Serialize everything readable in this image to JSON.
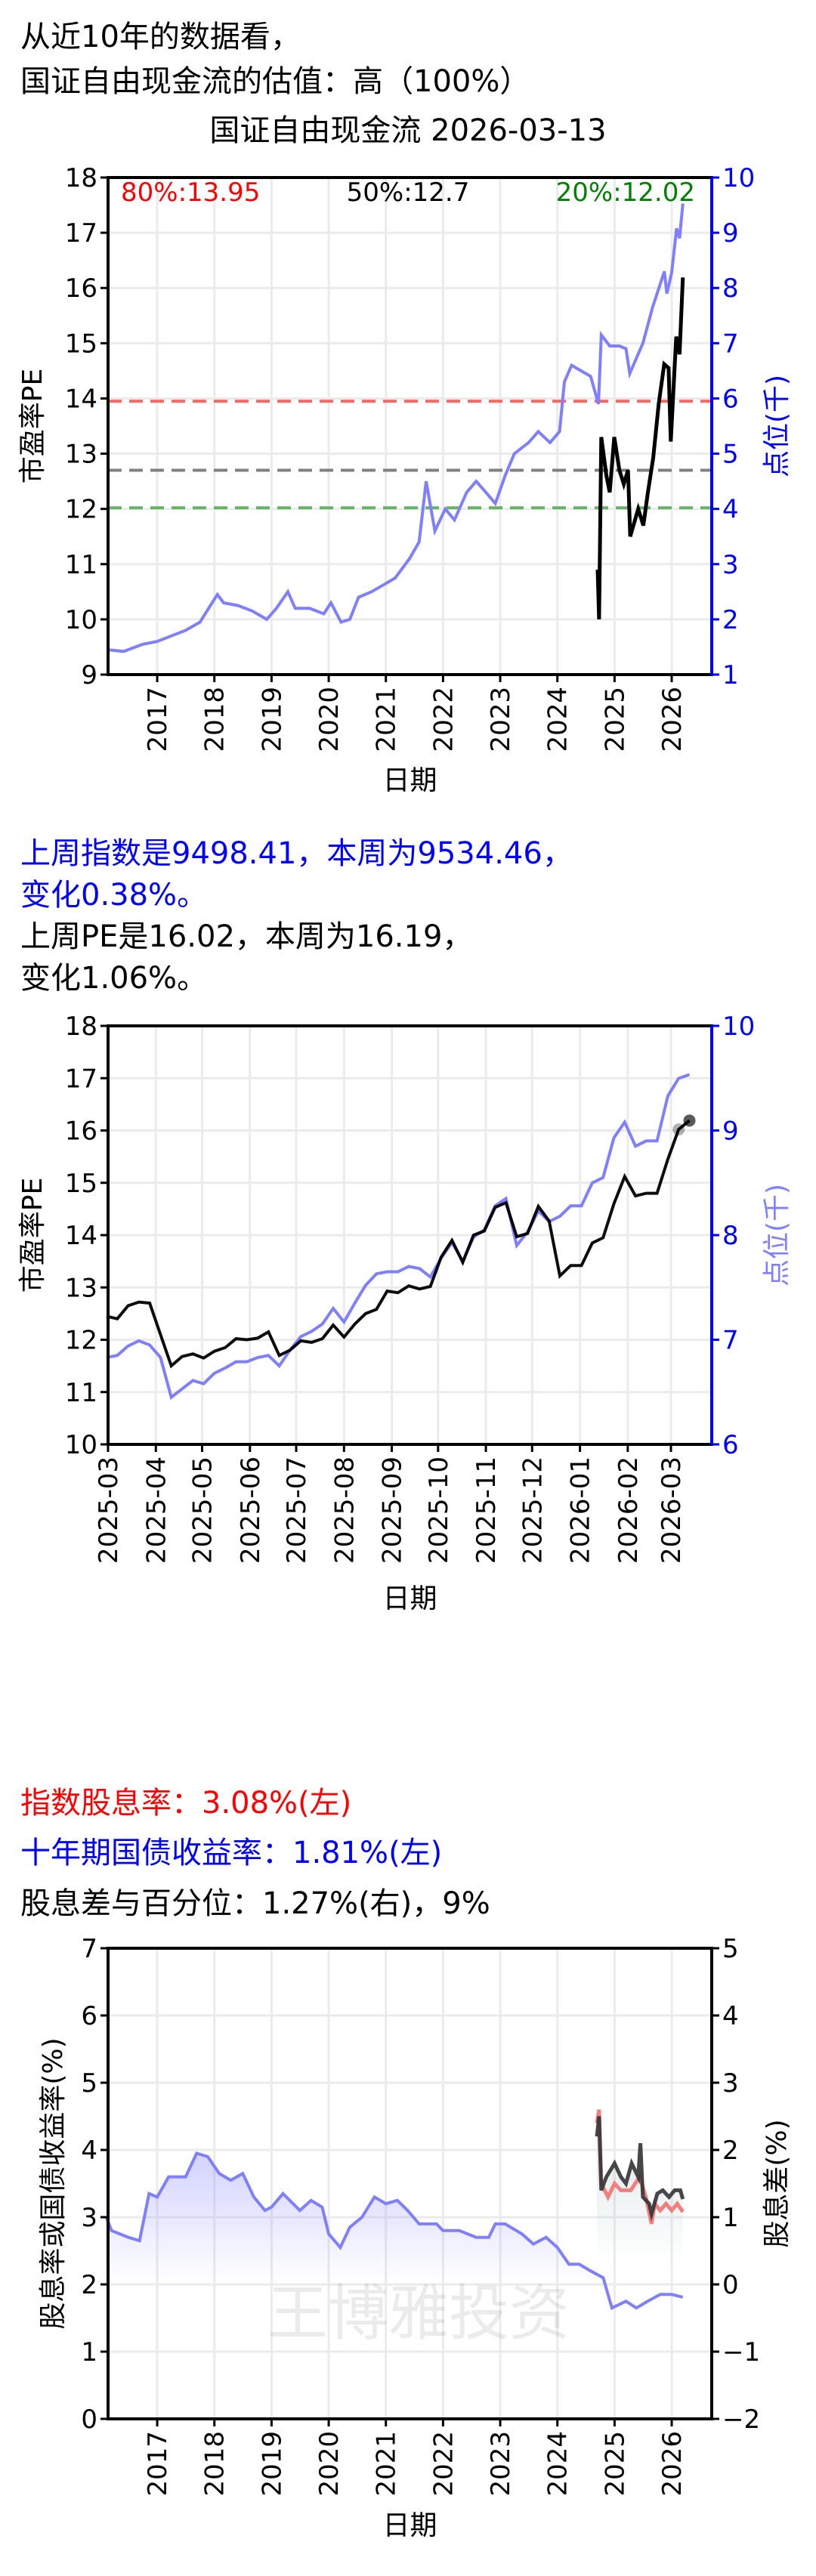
{
  "header": {
    "line1": "从近10年的数据看，",
    "line2": "国证自由现金流的估值：高（100%）"
  },
  "colors": {
    "pe": "#000000",
    "index": "#7f7fff",
    "p80": "#ff6666",
    "p50": "#808080",
    "p20": "#66b266",
    "right_axis": "#0000ff",
    "dividend": "#f08080",
    "bond": "#7f7fff",
    "spread": "#333333"
  },
  "chart_data": [
    {
      "type": "line",
      "title": "国证自由现金流 2026-03-13",
      "xlabel": "日期",
      "ylabel": "市盈率PE",
      "ylabel_right": "点位(千)",
      "ylim": [
        9,
        18
      ],
      "ylim_right": [
        1,
        10
      ],
      "yticks": [
        "9",
        "10",
        "11",
        "12",
        "13",
        "14",
        "15",
        "16",
        "17",
        "18"
      ],
      "yticks_right": [
        "1",
        "2",
        "3",
        "4",
        "5",
        "6",
        "7",
        "8",
        "9",
        "10"
      ],
      "xticks": [
        "2017",
        "2018",
        "2019",
        "2020",
        "2021",
        "2022",
        "2023",
        "2024",
        "2025",
        "2026"
      ],
      "grid": true,
      "annotations": {
        "p80": "80%:13.95",
        "p50": "50%:12.7",
        "p20": "20%:12.02"
      },
      "hlines": {
        "p80": 13.95,
        "p50": 12.7,
        "p20": 12.02
      },
      "series": [
        {
          "axis": "right",
          "points": [
            [
              "2016-02-20",
              1.45
            ],
            [
              "2016-06-01",
              1.42
            ],
            [
              "2016-10-01",
              1.55
            ],
            [
              "2017-01-01",
              1.6
            ],
            [
              "2017-04-01",
              1.7
            ],
            [
              "2017-07-01",
              1.8
            ],
            [
              "2017-10-01",
              1.95
            ],
            [
              "2018-01-20",
              2.45
            ],
            [
              "2018-03-01",
              2.3
            ],
            [
              "2018-06-01",
              2.25
            ],
            [
              "2018-09-01",
              2.15
            ],
            [
              "2018-12-01",
              2.0
            ],
            [
              "2019-02-01",
              2.2
            ],
            [
              "2019-04-15",
              2.5
            ],
            [
              "2019-06-01",
              2.2
            ],
            [
              "2019-09-01",
              2.2
            ],
            [
              "2019-12-01",
              2.1
            ],
            [
              "2020-01-15",
              2.3
            ],
            [
              "2020-03-20",
              1.95
            ],
            [
              "2020-05-15",
              2.0
            ],
            [
              "2020-07-10",
              2.4
            ],
            [
              "2020-10-01",
              2.5
            ],
            [
              "2021-01-01",
              2.65
            ],
            [
              "2021-03-01",
              2.75
            ],
            [
              "2021-06-01",
              3.1
            ],
            [
              "2021-08-01",
              3.4
            ],
            [
              "2021-09-15",
              4.5
            ],
            [
              "2021-11-10",
              3.6
            ],
            [
              "2022-01-15",
              4.0
            ],
            [
              "2022-03-15",
              3.8
            ],
            [
              "2022-06-01",
              4.3
            ],
            [
              "2022-08-01",
              4.5
            ],
            [
              "2022-10-01",
              4.3
            ],
            [
              "2022-12-01",
              4.1
            ],
            [
              "2023-02-01",
              4.6
            ],
            [
              "2023-04-01",
              5.0
            ],
            [
              "2023-07-01",
              5.2
            ],
            [
              "2023-09-01",
              5.4
            ],
            [
              "2023-11-15",
              5.2
            ],
            [
              "2024-01-15",
              5.4
            ],
            [
              "2024-02-15",
              6.3
            ],
            [
              "2024-04-01",
              6.6
            ],
            [
              "2024-06-01",
              6.5
            ],
            [
              "2024-08-01",
              6.4
            ],
            [
              "2024-09-20",
              5.9
            ],
            [
              "2024-10-08",
              7.15
            ],
            [
              "2024-12-01",
              6.95
            ],
            [
              "2025-02-01",
              6.95
            ],
            [
              "2025-03-15",
              6.9
            ],
            [
              "2025-04-08",
              6.45
            ],
            [
              "2025-07-01",
              7.0
            ],
            [
              "2025-09-01",
              7.65
            ],
            [
              "2025-11-15",
              8.3
            ],
            [
              "2025-12-01",
              7.9
            ],
            [
              "2026-01-01",
              8.28
            ],
            [
              "2026-02-01",
              9.08
            ],
            [
              "2026-02-20",
              8.9
            ],
            [
              "2026-03-13",
              9.53
            ]
          ]
        },
        {
          "axis": "left",
          "points": [
            [
              "2024-09-15",
              10.9
            ],
            [
              "2024-09-24",
              10.0
            ],
            [
              "2024-10-08",
              13.3
            ],
            [
              "2024-11-10",
              12.6
            ],
            [
              "2024-12-01",
              12.3
            ],
            [
              "2024-12-30",
              13.3
            ],
            [
              "2025-02-01",
              12.7
            ],
            [
              "2025-03-01",
              12.45
            ],
            [
              "2025-03-28",
              12.7
            ],
            [
              "2025-04-11",
              11.5
            ],
            [
              "2025-06-01",
              12.0
            ],
            [
              "2025-07-04",
              11.7
            ],
            [
              "2025-08-01",
              12.28
            ],
            [
              "2025-09-05",
              12.93
            ],
            [
              "2025-10-10",
              13.9
            ],
            [
              "2025-11-14",
              14.62
            ],
            [
              "2025-12-12",
              14.55
            ],
            [
              "2025-12-26",
              13.22
            ],
            [
              "2026-01-30",
              15.12
            ],
            [
              "2026-02-20",
              14.8
            ],
            [
              "2026-03-13",
              16.19
            ]
          ]
        }
      ]
    },
    {
      "type": "line",
      "text_index_line1": "上周指数是9498.41，本周为9534.46，",
      "text_index_line2": "变化0.38%。",
      "text_pe_line1": "上周PE是16.02，本周为16.19，",
      "text_pe_line2": "变化1.06%。",
      "xlabel": "日期",
      "ylabel": "市盈率PE",
      "ylabel_right": "点位(千)",
      "ylim": [
        10,
        18
      ],
      "ylim_right": [
        6,
        10
      ],
      "yticks": [
        "10",
        "11",
        "12",
        "13",
        "14",
        "15",
        "16",
        "17",
        "18"
      ],
      "yticks_right": [
        "6",
        "7",
        "8",
        "9",
        "10"
      ],
      "xticks": [
        "2025-03",
        "2025-04",
        "2025-05",
        "2025-06",
        "2025-07",
        "2025-08",
        "2025-09",
        "2025-10",
        "2025-11",
        "2025-12",
        "2026-01",
        "2026-02",
        "2026-03"
      ],
      "grid": true,
      "dates": [
        "2025-02-28",
        "2025-03-07",
        "2025-03-14",
        "2025-03-21",
        "2025-03-28",
        "2025-04-04",
        "2025-04-11",
        "2025-04-18",
        "2025-04-25",
        "2025-05-02",
        "2025-05-09",
        "2025-05-16",
        "2025-05-23",
        "2025-05-30",
        "2025-06-06",
        "2025-06-13",
        "2025-06-20",
        "2025-06-27",
        "2025-07-04",
        "2025-07-11",
        "2025-07-18",
        "2025-07-25",
        "2025-08-01",
        "2025-08-08",
        "2025-08-15",
        "2025-08-22",
        "2025-08-29",
        "2025-09-05",
        "2025-09-12",
        "2025-09-19",
        "2025-09-26",
        "2025-10-03",
        "2025-10-10",
        "2025-10-17",
        "2025-10-24",
        "2025-10-31",
        "2025-11-07",
        "2025-11-14",
        "2025-11-21",
        "2025-11-28",
        "2025-12-05",
        "2025-12-12",
        "2025-12-19",
        "2025-12-26",
        "2026-01-02",
        "2026-01-09",
        "2026-01-16",
        "2026-01-23",
        "2026-01-30",
        "2026-02-06",
        "2026-02-13",
        "2026-02-20",
        "2026-02-27",
        "2026-03-06",
        "2026-03-13"
      ],
      "pe": [
        12.45,
        12.4,
        12.65,
        12.72,
        12.7,
        12.1,
        11.5,
        11.68,
        11.73,
        11.65,
        11.78,
        11.85,
        12.02,
        12.0,
        12.03,
        12.15,
        11.7,
        11.8,
        11.98,
        11.95,
        12.02,
        12.28,
        12.05,
        12.3,
        12.5,
        12.58,
        12.93,
        12.9,
        13.03,
        12.97,
        13.02,
        13.58,
        13.9,
        13.48,
        14.0,
        14.08,
        14.53,
        14.62,
        13.97,
        14.03,
        14.55,
        14.27,
        13.22,
        13.42,
        13.42,
        13.85,
        13.95,
        14.6,
        15.12,
        14.75,
        14.8,
        14.8,
        15.45,
        16.02,
        16.19
      ],
      "index": [
        6.83,
        6.85,
        6.94,
        6.99,
        6.95,
        6.83,
        6.45,
        6.53,
        6.61,
        6.58,
        6.68,
        6.73,
        6.79,
        6.79,
        6.83,
        6.85,
        6.75,
        6.9,
        7.03,
        7.08,
        7.15,
        7.3,
        7.17,
        7.35,
        7.52,
        7.63,
        7.65,
        7.65,
        7.7,
        7.68,
        7.6,
        7.78,
        7.93,
        7.75,
        7.98,
        8.05,
        8.28,
        8.35,
        7.9,
        8.03,
        8.23,
        8.13,
        8.18,
        8.28,
        8.28,
        8.5,
        8.55,
        8.93,
        9.08,
        8.85,
        8.9,
        8.9,
        9.33,
        9.498,
        9.534
      ]
    },
    {
      "type": "line",
      "text_dividend": "指数股息率：3.08%(左)",
      "text_bond": "十年期国债收益率：1.81%(左)",
      "text_spread": "股息差与百分位：1.27%(右)，9%",
      "watermark": "王博雅投资",
      "xlabel": "日期",
      "ylabel": "股息率或国债收益率(%)",
      "ylabel_right": "股息差(%)",
      "ylim": [
        0,
        7
      ],
      "ylim_right": [
        -2,
        5
      ],
      "yticks": [
        "0",
        "1",
        "2",
        "3",
        "4",
        "5",
        "6",
        "7"
      ],
      "yticks_right": [
        "−2",
        "−1",
        "0",
        "1",
        "2",
        "3",
        "4",
        "5"
      ],
      "xticks": [
        "2017",
        "2018",
        "2019",
        "2020",
        "2021",
        "2022",
        "2023",
        "2024",
        "2025",
        "2026"
      ],
      "grid": true,
      "bond": [
        [
          "2016-02-10",
          3.0
        ],
        [
          "2016-03-15",
          2.8
        ],
        [
          "2016-07-01",
          2.7
        ],
        [
          "2016-09-10",
          2.65
        ],
        [
          "2016-11-10",
          3.35
        ],
        [
          "2017-01-01",
          3.3
        ],
        [
          "2017-03-15",
          3.6
        ],
        [
          "2017-07-01",
          3.6
        ],
        [
          "2017-09-10",
          3.95
        ],
        [
          "2017-11-20",
          3.9
        ],
        [
          "2018-02-01",
          3.65
        ],
        [
          "2018-04-15",
          3.55
        ],
        [
          "2018-07-01",
          3.65
        ],
        [
          "2018-09-10",
          3.3
        ],
        [
          "2018-11-20",
          3.1
        ],
        [
          "2019-01-01",
          3.15
        ],
        [
          "2019-03-15",
          3.35
        ],
        [
          "2019-07-01",
          3.1
        ],
        [
          "2019-09-10",
          3.25
        ],
        [
          "2019-11-20",
          3.15
        ],
        [
          "2020-01-01",
          2.75
        ],
        [
          "2020-03-15",
          2.55
        ],
        [
          "2020-05-15",
          2.85
        ],
        [
          "2020-08-01",
          3.0
        ],
        [
          "2020-10-20",
          3.3
        ],
        [
          "2021-01-01",
          3.2
        ],
        [
          "2021-03-15",
          3.25
        ],
        [
          "2021-05-20",
          3.1
        ],
        [
          "2021-08-01",
          2.9
        ],
        [
          "2021-11-20",
          2.9
        ],
        [
          "2022-01-01",
          2.8
        ],
        [
          "2022-04-15",
          2.8
        ],
        [
          "2022-08-01",
          2.7
        ],
        [
          "2022-10-20",
          2.7
        ],
        [
          "2022-12-01",
          2.9
        ],
        [
          "2023-02-01",
          2.9
        ],
        [
          "2023-05-20",
          2.75
        ],
        [
          "2023-08-01",
          2.6
        ],
        [
          "2023-10-20",
          2.7
        ],
        [
          "2024-01-01",
          2.55
        ],
        [
          "2024-03-15",
          2.3
        ],
        [
          "2024-05-20",
          2.3
        ],
        [
          "2024-08-01",
          2.2
        ],
        [
          "2024-10-20",
          2.1
        ],
        [
          "2024-12-15",
          1.65
        ],
        [
          "2025-03-15",
          1.75
        ],
        [
          "2025-05-20",
          1.65
        ],
        [
          "2025-08-01",
          1.75
        ],
        [
          "2025-10-20",
          1.85
        ],
        [
          "2026-01-01",
          1.85
        ],
        [
          "2026-03-13",
          1.81
        ]
      ],
      "dividend": [
        [
          "2024-09-10",
          4.4
        ],
        [
          "2024-09-24",
          4.6
        ],
        [
          "2024-10-08",
          3.5
        ],
        [
          "2024-11-20",
          3.3
        ],
        [
          "2025-01-01",
          3.5
        ],
        [
          "2025-02-10",
          3.4
        ],
        [
          "2025-04-15",
          3.4
        ],
        [
          "2025-06-10",
          3.6
        ],
        [
          "2025-07-20",
          3.3
        ],
        [
          "2025-08-25",
          2.9
        ],
        [
          "2025-09-15",
          3.2
        ],
        [
          "2025-10-20",
          3.1
        ],
        [
          "2025-11-25",
          3.2
        ],
        [
          "2026-01-01",
          3.1
        ],
        [
          "2026-02-05",
          3.2
        ],
        [
          "2026-03-13",
          3.08
        ]
      ],
      "spread": [
        [
          "2024-09-10",
          2.2
        ],
        [
          "2024-09-24",
          2.5
        ],
        [
          "2024-10-08",
          1.4
        ],
        [
          "2024-11-10",
          1.6
        ],
        [
          "2025-01-01",
          1.8
        ],
        [
          "2025-02-10",
          1.6
        ],
        [
          "2025-03-15",
          1.5
        ],
        [
          "2025-04-20",
          1.8
        ],
        [
          "2025-06-01",
          1.6
        ],
        [
          "2025-06-15",
          2.1
        ],
        [
          "2025-07-01",
          1.3
        ],
        [
          "2025-08-10",
          1.2
        ],
        [
          "2025-08-25",
          1.05
        ],
        [
          "2025-10-01",
          1.35
        ],
        [
          "2025-11-05",
          1.4
        ],
        [
          "2025-12-15",
          1.3
        ],
        [
          "2026-01-20",
          1.4
        ],
        [
          "2026-02-25",
          1.4
        ],
        [
          "2026-03-13",
          1.27
        ]
      ]
    }
  ]
}
